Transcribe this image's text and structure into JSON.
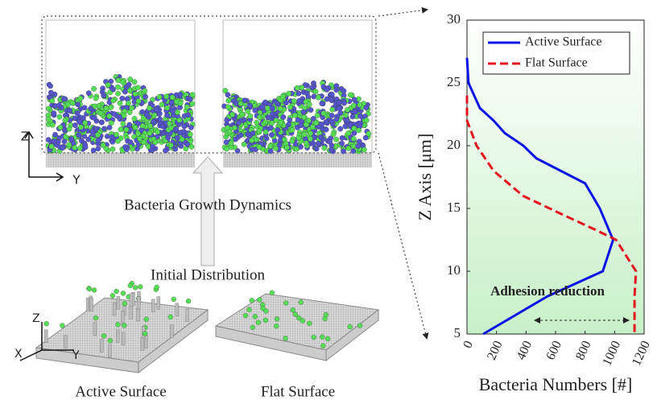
{
  "chart_data": {
    "type": "line",
    "xlabel": "Bacteria Numbers [#]",
    "ylabel": "Z Axis [μm]",
    "xlim": [
      0,
      1200
    ],
    "xticks": [
      0,
      200,
      400,
      600,
      800,
      1000,
      1200
    ],
    "ylim": [
      5,
      30
    ],
    "yticks": [
      5,
      10,
      15,
      20,
      25,
      30
    ],
    "legend": "upper right",
    "series": [
      {
        "name": "Active Surface",
        "color": "#0a14e6",
        "dash": "solid",
        "x": [
          0,
          10,
          87,
          180,
          256,
          382,
          469,
          800,
          900,
          990,
          920,
          545,
          110
        ],
        "y": [
          27,
          25,
          23,
          22,
          21,
          20,
          19,
          17,
          15,
          12.5,
          10,
          8,
          5
        ]
      },
      {
        "name": "Flat Surface",
        "color": "#e6141e",
        "dash": "dashed",
        "x": [
          0,
          0,
          65,
          180,
          380,
          650,
          870,
          1010,
          1145,
          1135,
          1135
        ],
        "y": [
          24,
          22,
          20,
          18,
          16,
          14.5,
          13.3,
          12.5,
          10,
          8,
          5
        ]
      }
    ],
    "annotation": "Adhesion reduction"
  },
  "schematic": {
    "growth_label": "Bacteria Growth Dynamics",
    "initial_label": "Initial Distribution",
    "active_label": "Active Surface",
    "flat_label": "Flat Surface",
    "axis_z": "Z",
    "axis_y": "Y",
    "axis_x": "X"
  }
}
